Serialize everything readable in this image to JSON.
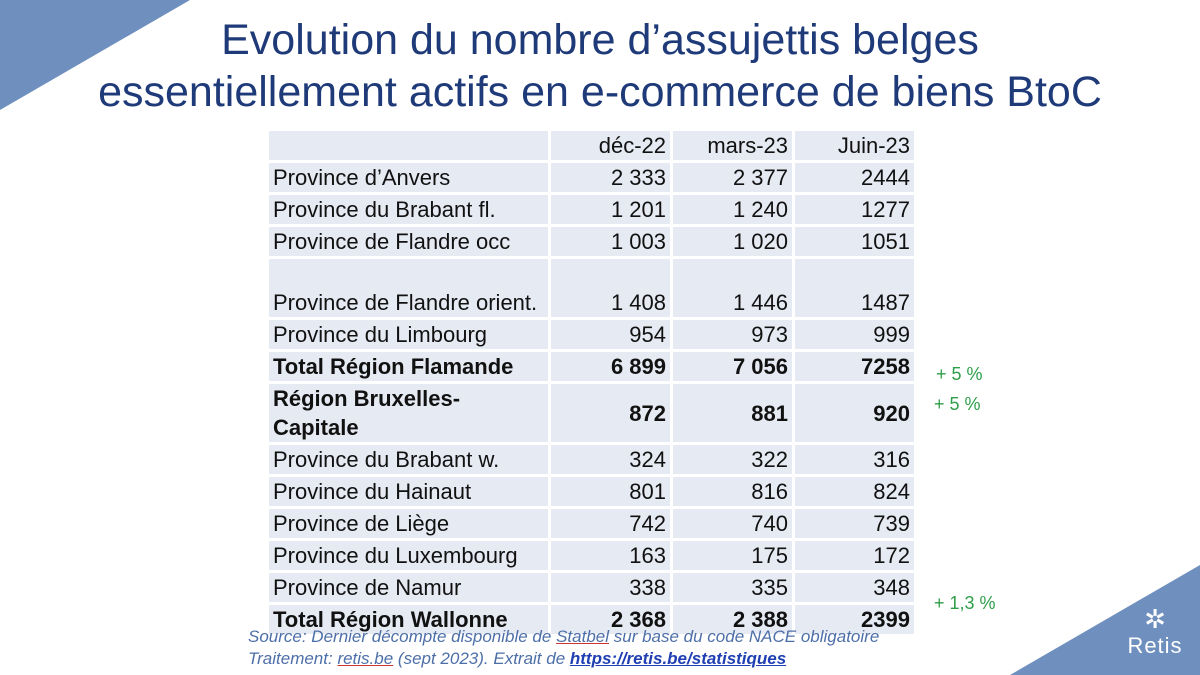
{
  "title": {
    "line1": "Evolution du nombre d’assujettis belges",
    "line2": "essentiellement actifs en e-commerce de biens BtoC"
  },
  "table": {
    "headers": [
      "",
      "déc-22",
      "mars-23",
      "Juin-23"
    ],
    "rows": [
      {
        "name": "Province d’Anvers",
        "v1": "2 333",
        "v2": "2 377",
        "v3": "2444"
      },
      {
        "name": "Province du Brabant fl.",
        "v1": "1 201",
        "v2": "1 240",
        "v3": "1277"
      },
      {
        "name": "Province de Flandre occ",
        "v1": "1 003",
        "v2": "1 020",
        "v3": "1051"
      },
      {
        "name": "Province de Flandre orient.",
        "v1": "1 408",
        "v2": "1 446",
        "v3": "1487"
      },
      {
        "name": "Province du Limbourg",
        "v1": "954",
        "v2": "973",
        "v3": "999"
      },
      {
        "name": "Total Région Flamande",
        "v1": "6 899",
        "v2": "7 056",
        "v3": "7258",
        "growth": "+ 5 %"
      },
      {
        "name": "Région Bruxelles-Capitale",
        "v1": "872",
        "v2": "881",
        "v3": "920",
        "growth": "+ 5 %"
      },
      {
        "name": "Province du Brabant w.",
        "v1": "324",
        "v2": "322",
        "v3": "316"
      },
      {
        "name": "Province du Hainaut",
        "v1": "801",
        "v2": "816",
        "v3": "824"
      },
      {
        "name": "Province de Liège",
        "v1": "742",
        "v2": "740",
        "v3": "739"
      },
      {
        "name": "Province du Luxembourg",
        "v1": "163",
        "v2": "175",
        "v3": "172"
      },
      {
        "name": "Province de Namur",
        "v1": "338",
        "v2": "335",
        "v3": "348"
      },
      {
        "name": "Total Région Wallonne",
        "v1": "2 368",
        "v2": "2 388",
        "v3": "2399",
        "growth": "+ 1,3 %"
      }
    ]
  },
  "source": {
    "line1_prefix": "Source: Dernier décompte disponible de ",
    "line1_link": "Statbel",
    "line1_suffix": " sur base du code NACE obligatoire",
    "line2_prefix": "Traitement: ",
    "line2_site": "retis.be",
    "line2_mid": " (sept 2023). Extrait de ",
    "line2_url": "https://retis.be/statistiques"
  },
  "logo": {
    "icon": "retis-logo-icon",
    "name": "Retis"
  },
  "colors": {
    "accent": "#6f8fbf",
    "title": "#1f3a78",
    "cell": "#e6eaf3",
    "growth": "#2e9e4a"
  }
}
